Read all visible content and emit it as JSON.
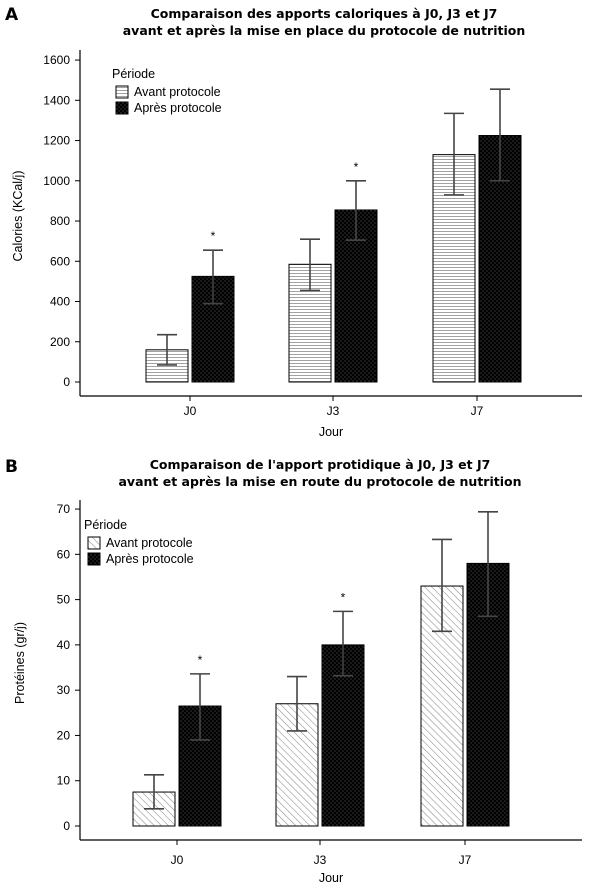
{
  "chart_data": [
    {
      "panel": "A",
      "type": "bar",
      "title": [
        "Comparaison des apports caloriques à J0, J3 et J7",
        "avant et après la mise en place du protocole de nutrition"
      ],
      "xlabel": "Jour",
      "ylabel": "Calories (KCal/j)",
      "categories": [
        "J0",
        "J3",
        "J7"
      ],
      "ylim": [
        0,
        1650
      ],
      "yticks": [
        0,
        200,
        400,
        600,
        800,
        1000,
        1200,
        1400,
        1600
      ],
      "legend": {
        "title": "Période",
        "placement": "top-left"
      },
      "series": [
        {
          "name": "Avant protocole",
          "pattern": "horizontal-lines",
          "values": [
            160,
            585,
            1130
          ],
          "error_low": [
            85,
            455,
            930
          ],
          "error_high": [
            235,
            710,
            1335
          ]
        },
        {
          "name": "Après protocole",
          "pattern": "dotted-black",
          "values": [
            525,
            855,
            1225
          ],
          "error_low": [
            390,
            705,
            1000
          ],
          "error_high": [
            655,
            1000,
            1455
          ]
        }
      ],
      "annotations": [
        {
          "category": "J0",
          "text": "*"
        },
        {
          "category": "J3",
          "text": "*"
        }
      ]
    },
    {
      "panel": "B",
      "type": "bar",
      "title": [
        "Comparaison de l'apport protidique à J0, J3 et J7",
        "avant et après la mise en route du protocole de nutrition"
      ],
      "xlabel": "Jour",
      "ylabel": "Protéines (gr/j)",
      "categories": [
        "J0",
        "J3",
        "J7"
      ],
      "ylim": [
        0,
        72
      ],
      "yticks": [
        0,
        10,
        20,
        30,
        40,
        50,
        60,
        70
      ],
      "legend": {
        "title": "Période",
        "placement": "top-left"
      },
      "series": [
        {
          "name": "Avant protocole",
          "pattern": "diagonal-lines",
          "values": [
            7.5,
            27,
            53
          ],
          "error_low": [
            3.8,
            21,
            43
          ],
          "error_high": [
            11.3,
            33,
            63.3
          ]
        },
        {
          "name": "Après protocole",
          "pattern": "dotted-black",
          "values": [
            26.5,
            40,
            58
          ],
          "error_low": [
            19,
            33.2,
            46.3
          ],
          "error_high": [
            33.6,
            47.4,
            69.4
          ]
        }
      ],
      "annotations": [
        {
          "category": "J0",
          "text": "*"
        },
        {
          "category": "J3",
          "text": "*"
        }
      ]
    }
  ]
}
